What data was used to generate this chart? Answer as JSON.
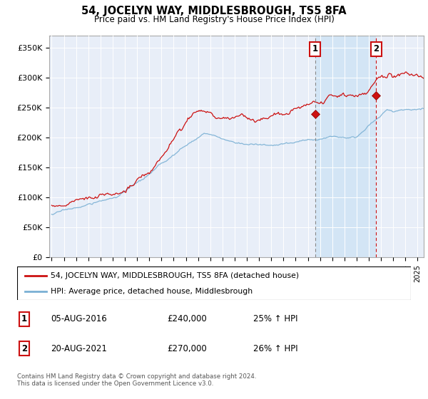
{
  "title": "54, JOCELYN WAY, MIDDLESBROUGH, TS5 8FA",
  "subtitle": "Price paid vs. HM Land Registry's House Price Index (HPI)",
  "ylabel_ticks": [
    "£0",
    "£50K",
    "£100K",
    "£150K",
    "£200K",
    "£250K",
    "£300K",
    "£350K"
  ],
  "ytick_values": [
    0,
    50000,
    100000,
    150000,
    200000,
    250000,
    300000,
    350000
  ],
  "ylim": [
    0,
    370000
  ],
  "xlim_start": 1995.0,
  "xlim_end": 2025.5,
  "hpi_color": "#7ab0d4",
  "price_color": "#cc1111",
  "marker1_date": 2016.6,
  "marker2_date": 2021.6,
  "marker1_price": 240000,
  "marker2_price": 270000,
  "legend_label1": "54, JOCELYN WAY, MIDDLESBROUGH, TS5 8FA (detached house)",
  "legend_label2": "HPI: Average price, detached house, Middlesbrough",
  "table_row1": [
    "1",
    "05-AUG-2016",
    "£240,000",
    "25% ↑ HPI"
  ],
  "table_row2": [
    "2",
    "20-AUG-2021",
    "£270,000",
    "26% ↑ HPI"
  ],
  "footer": "Contains HM Land Registry data © Crown copyright and database right 2024.\nThis data is licensed under the Open Government Licence v3.0.",
  "background_color": "#e8eef8",
  "highlight_color": "#d0e4f5"
}
